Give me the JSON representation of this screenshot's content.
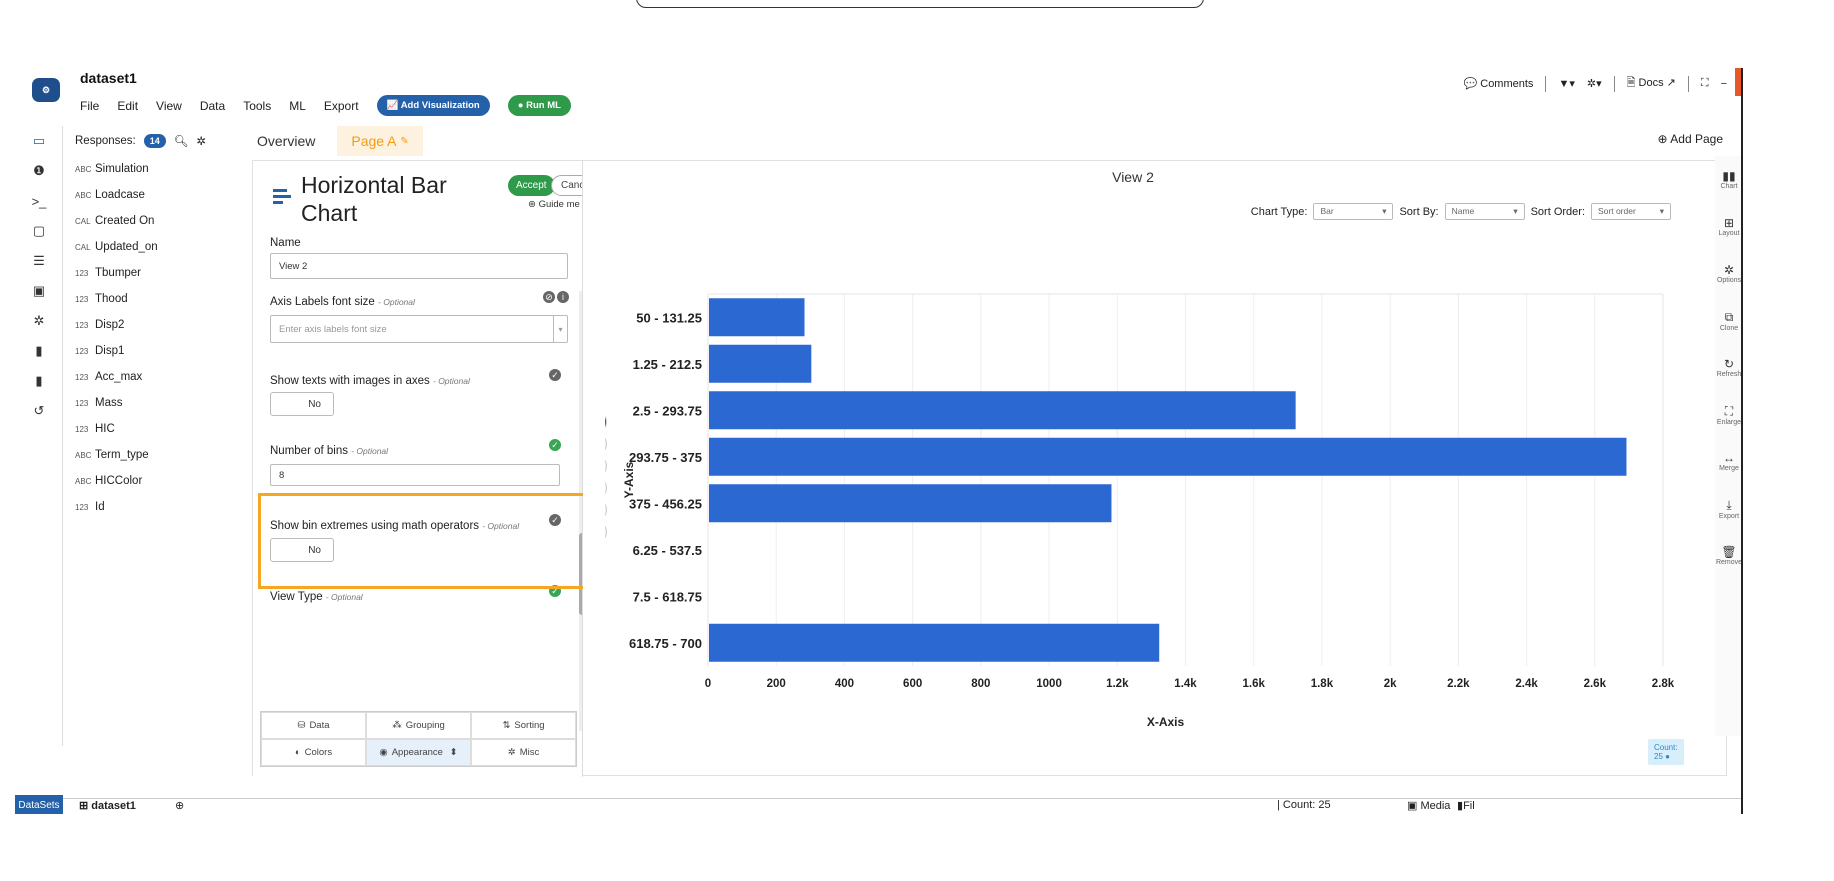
{
  "app": {
    "dataset_name": "dataset1",
    "logo": "app-logo-icon"
  },
  "menu": {
    "items": [
      "File",
      "Edit",
      "View",
      "Data",
      "Tools",
      "ML",
      "Export"
    ],
    "add_visualization": "Add Visualization",
    "run_ml": "Run ML"
  },
  "topright": {
    "comments": "Comments",
    "docs": "Docs"
  },
  "fields": {
    "responses_label": "Responses:",
    "responses_count": "14",
    "items": [
      {
        "type": "ABC",
        "name": "Simulation"
      },
      {
        "type": "ABC",
        "name": "Loadcase"
      },
      {
        "type": "CAL",
        "name": "Created On"
      },
      {
        "type": "CAL",
        "name": "Updated_on"
      },
      {
        "type": "123",
        "name": "Tbumper"
      },
      {
        "type": "123",
        "name": "Thood"
      },
      {
        "type": "123",
        "name": "Disp2"
      },
      {
        "type": "123",
        "name": "Disp1"
      },
      {
        "type": "123",
        "name": "Acc_max"
      },
      {
        "type": "123",
        "name": "Mass"
      },
      {
        "type": "123",
        "name": "HIC"
      },
      {
        "type": "ABC",
        "name": "Term_type"
      },
      {
        "type": "ABC",
        "name": "HICColor"
      },
      {
        "type": "123",
        "name": "Id"
      }
    ]
  },
  "tabs": {
    "overview": "Overview",
    "page_a": "Page A",
    "add_page": "Add Page"
  },
  "editor": {
    "title": "Horizontal Bar Chart",
    "accept": "Accept",
    "cancel": "Cancel",
    "guide": "Guide me",
    "name_label": "Name",
    "name_value": "View 2",
    "axis_font_label": "Axis Labels font size",
    "axis_font_placeholder": "Enter axis labels font size",
    "show_texts_label": "Show texts with images in axes",
    "show_texts_value": "No",
    "bins_label": "Number of bins",
    "bins_value": "8",
    "bin_extremes_label": "Show bin extremes using math operators",
    "bin_extremes_value": "No",
    "view_type_label": "View Type",
    "optional": "- Optional",
    "subtabs": [
      "Data",
      "Grouping",
      "Sorting",
      "Colors",
      "Appearance",
      "Misc"
    ]
  },
  "chart_controls": {
    "chart_type_label": "Chart Type:",
    "chart_type_value": "Bar",
    "sort_by_label": "Sort By:",
    "sort_by_value": "Name",
    "sort_order_label": "Sort Order:",
    "sort_order_placeholder": "Sort order",
    "count_chip": "Count: 25"
  },
  "chart_data": {
    "type": "bar",
    "orientation": "horizontal",
    "title": "View 2",
    "xlabel": "X-Axis",
    "ylabel": "Y-Axis",
    "categories": [
      "50 - 131.25",
      "1.25 - 212.5",
      "2.5 - 293.75",
      "293.75 - 375",
      "375 - 456.25",
      "6.25 - 537.5",
      "7.5 - 618.75",
      "618.75 - 700"
    ],
    "values": [
      280,
      300,
      1720,
      2690,
      1180,
      0,
      0,
      1320
    ],
    "xlim": [
      0,
      2800
    ],
    "xticks": [
      "0",
      "200",
      "400",
      "600",
      "800",
      "1000",
      "1.2k",
      "1.4k",
      "1.6k",
      "1.8k",
      "2k",
      "2.2k",
      "2.4k",
      "2.6k",
      "2.8k"
    ],
    "bar_color": "#2b68d1",
    "grid": true
  },
  "right_rail": [
    "Chart",
    "Layout",
    "Options",
    "Clone",
    "Refresh",
    "Enlarge",
    "Merge",
    "Export",
    "Remove"
  ],
  "bottom": {
    "datasets_tab": "DataSets",
    "dataset_tab": "dataset1",
    "count": "Count: 25",
    "media": "Media",
    "files": "Fil"
  }
}
